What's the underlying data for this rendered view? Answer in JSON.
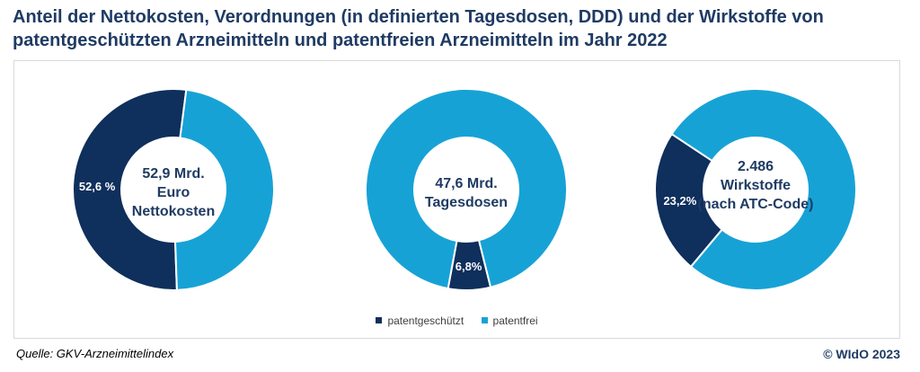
{
  "title": {
    "line1": "Anteil der Nettokosten, Verordnungen (in definierten Tagesdosen, DDD) und der Wirkstoffe von",
    "line2": "patentgeschützten Arzneimitteln und patentfreien Arzneimitteln im Jahr 2022"
  },
  "colors": {
    "patentgeschuetzt": "#0f2f5c",
    "patentfrei": "#17a2d6"
  },
  "chart_data": [
    {
      "type": "pie",
      "series": [
        {
          "name": "patentgeschützt",
          "value": 52.6,
          "label": "52,6 %"
        },
        {
          "name": "patentfrei",
          "value": 47.4,
          "label": ""
        }
      ],
      "center_label": [
        "52,9 Mrd.",
        "Euro",
        "Nettokosten"
      ]
    },
    {
      "type": "pie",
      "series": [
        {
          "name": "patentgeschützt",
          "value": 6.8,
          "label": "6,8%"
        },
        {
          "name": "patentfrei",
          "value": 93.2,
          "label": ""
        }
      ],
      "center_label": [
        "47,6 Mrd.",
        "Tagesdosen"
      ]
    },
    {
      "type": "pie",
      "series": [
        {
          "name": "patentgeschützt",
          "value": 23.2,
          "label": "23,2%"
        },
        {
          "name": "patentfrei",
          "value": 76.8,
          "label": ""
        }
      ],
      "center_label": [
        "2.486",
        "Wirkstoffe",
        "(nach ATC-Code)"
      ]
    }
  ],
  "legend": [
    {
      "label": "patentgeschützt",
      "color": "#0f2f5c"
    },
    {
      "label": "patentfrei",
      "color": "#17a2d6"
    }
  ],
  "source": "Quelle: GKV-Arzneimittelindex",
  "copyright": "© WIdO 2023"
}
